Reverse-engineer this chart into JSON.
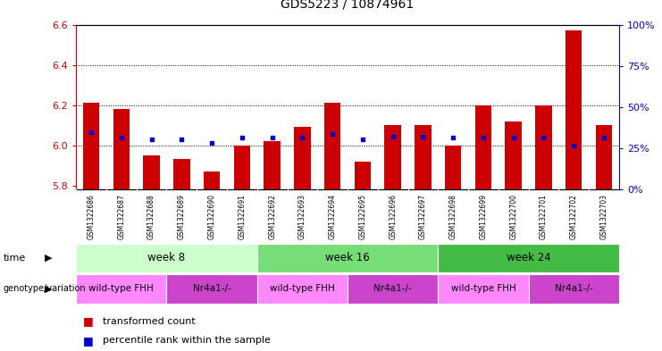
{
  "title": "GDS5223 / 10874961",
  "samples": [
    "GSM1322686",
    "GSM1322687",
    "GSM1322688",
    "GSM1322689",
    "GSM1322690",
    "GSM1322691",
    "GSM1322692",
    "GSM1322693",
    "GSM1322694",
    "GSM1322695",
    "GSM1322696",
    "GSM1322697",
    "GSM1322698",
    "GSM1322699",
    "GSM1322700",
    "GSM1322701",
    "GSM1322702",
    "GSM1322703"
  ],
  "red_values": [
    6.21,
    6.18,
    5.95,
    5.93,
    5.87,
    6.0,
    6.02,
    6.09,
    6.21,
    5.92,
    6.1,
    6.1,
    6.0,
    6.2,
    6.12,
    6.2,
    6.57,
    6.1
  ],
  "blue_values": [
    6.065,
    6.04,
    6.03,
    6.03,
    6.01,
    6.04,
    6.04,
    6.04,
    6.055,
    6.03,
    6.045,
    6.045,
    6.04,
    6.04,
    6.04,
    6.04,
    6.0,
    6.04
  ],
  "ymin": 5.78,
  "ymax": 6.6,
  "yticks_left": [
    5.8,
    6.0,
    6.2,
    6.4,
    6.6
  ],
  "yticks_right": [
    0,
    25,
    50,
    75,
    100
  ],
  "bar_color": "#cc0000",
  "dot_color": "#0000cc",
  "time_groups": [
    {
      "label": "week 8",
      "start": 0,
      "end": 6,
      "color": "#ccffcc"
    },
    {
      "label": "week 16",
      "start": 6,
      "end": 12,
      "color": "#77dd77"
    },
    {
      "label": "week 24",
      "start": 12,
      "end": 18,
      "color": "#44bb44"
    }
  ],
  "geno_groups": [
    {
      "label": "wild-type FHH",
      "start": 0,
      "end": 3,
      "color": "#ff88ff"
    },
    {
      "label": "Nr4a1-/-",
      "start": 3,
      "end": 6,
      "color": "#cc44cc"
    },
    {
      "label": "wild-type FHH",
      "start": 6,
      "end": 9,
      "color": "#ff88ff"
    },
    {
      "label": "Nr4a1-/-",
      "start": 9,
      "end": 12,
      "color": "#cc44cc"
    },
    {
      "label": "wild-type FHH",
      "start": 12,
      "end": 15,
      "color": "#ff88ff"
    },
    {
      "label": "Nr4a1-/-",
      "start": 15,
      "end": 18,
      "color": "#cc44cc"
    }
  ],
  "legend_red": "transformed count",
  "legend_blue": "percentile rank within the sample",
  "time_label": "time",
  "geno_label": "genotype/variation",
  "grid_yticks": [
    6.0,
    6.2,
    6.4
  ]
}
